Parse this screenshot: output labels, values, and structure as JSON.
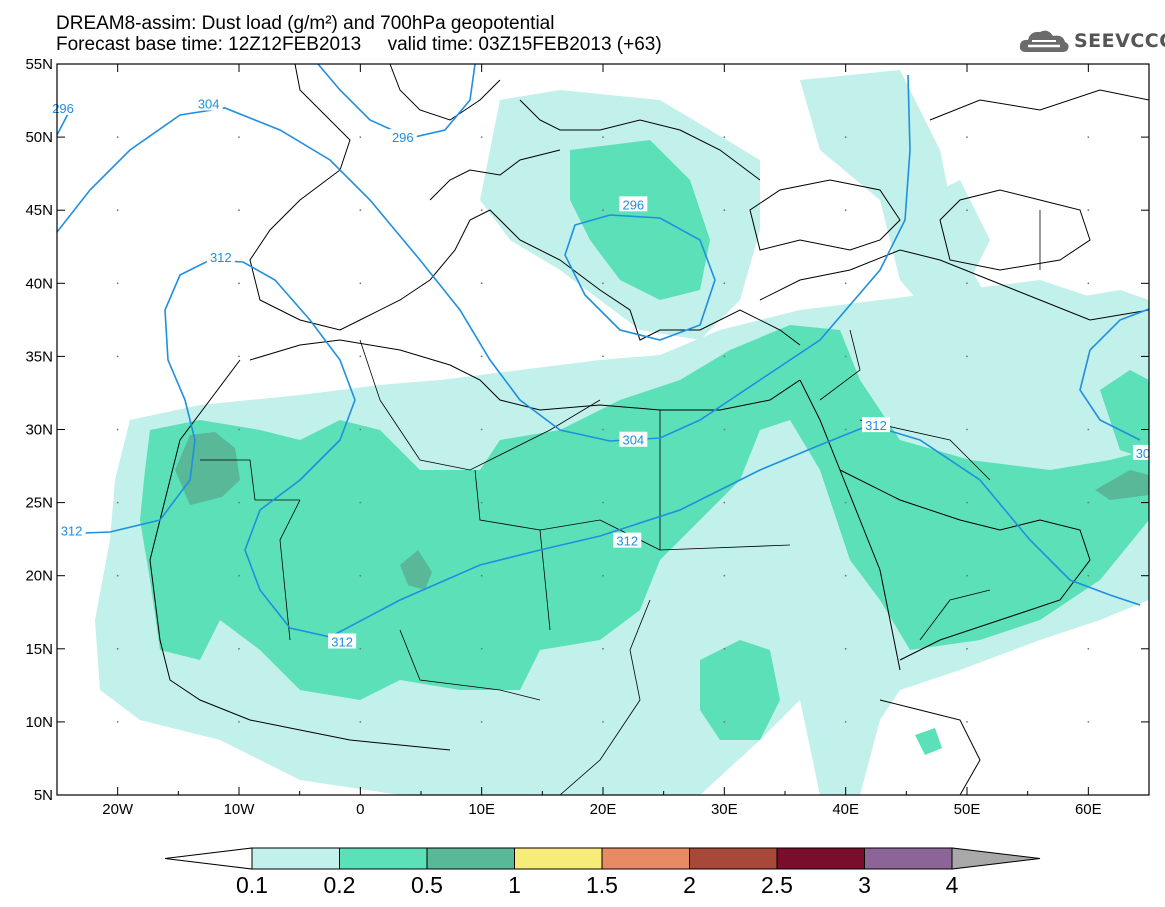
{
  "title": {
    "line1": "DREAM8-assim: Dust load (g/m²) and 700hPa geopotential",
    "line2": "Forecast base time: 12Z12FEB2013     valid time: 03Z15FEB2013 (+63)"
  },
  "logo": {
    "text": "SEEVCCC",
    "icon": "cloud-icon"
  },
  "map": {
    "lon_range": [
      -25,
      65
    ],
    "lat_range": [
      5,
      55
    ],
    "lon_ticks": [
      {
        "value": -20,
        "label": "20W"
      },
      {
        "value": -10,
        "label": "10W"
      },
      {
        "value": 0,
        "label": "0"
      },
      {
        "value": 10,
        "label": "10E"
      },
      {
        "value": 20,
        "label": "20E"
      },
      {
        "value": 30,
        "label": "30E"
      },
      {
        "value": 40,
        "label": "40E"
      },
      {
        "value": 50,
        "label": "50E"
      },
      {
        "value": 60,
        "label": "60E"
      }
    ],
    "lat_ticks": [
      {
        "value": 5,
        "label": "5N"
      },
      {
        "value": 10,
        "label": "10N"
      },
      {
        "value": 15,
        "label": "15N"
      },
      {
        "value": 20,
        "label": "20N"
      },
      {
        "value": 25,
        "label": "25N"
      },
      {
        "value": 30,
        "label": "30N"
      },
      {
        "value": 35,
        "label": "35N"
      },
      {
        "value": 40,
        "label": "40N"
      },
      {
        "value": 45,
        "label": "45N"
      },
      {
        "value": 50,
        "label": "50N"
      },
      {
        "value": 55,
        "label": "55N"
      }
    ],
    "contour_color": "#1f8fe0",
    "contour_labels": [
      {
        "text": "304",
        "lon": -12.5,
        "lat": 52.3
      },
      {
        "text": "296",
        "lon": -24.5,
        "lat": 52.0
      },
      {
        "text": "296",
        "lon": 3.5,
        "lat": 50.0
      },
      {
        "text": "296",
        "lon": 22.5,
        "lat": 45.4
      },
      {
        "text": "312",
        "lon": -11.5,
        "lat": 41.8
      },
      {
        "text": "304",
        "lon": 22.5,
        "lat": 29.3
      },
      {
        "text": "312",
        "lon": 42.5,
        "lat": 30.3
      },
      {
        "text": "312",
        "lon": -23.8,
        "lat": 23.1
      },
      {
        "text": "312",
        "lon": 22.0,
        "lat": 22.4
      },
      {
        "text": "312",
        "lon": -1.5,
        "lat": 15.5
      },
      {
        "text": "30",
        "lon": 64.5,
        "lat": 28.4
      }
    ]
  },
  "colorbar": {
    "colors": [
      "#c2f0ea",
      "#5ce0b8",
      "#58b898",
      "#f7ec7a",
      "#e88a64",
      "#a84838",
      "#7a0c2c",
      "#8c6498"
    ],
    "under_color": "#ffffff",
    "over_color": "#a8a8a8",
    "labels": [
      "0.1",
      "0.2",
      "0.5",
      "1",
      "1.5",
      "2",
      "2.5",
      "3",
      "4"
    ]
  }
}
